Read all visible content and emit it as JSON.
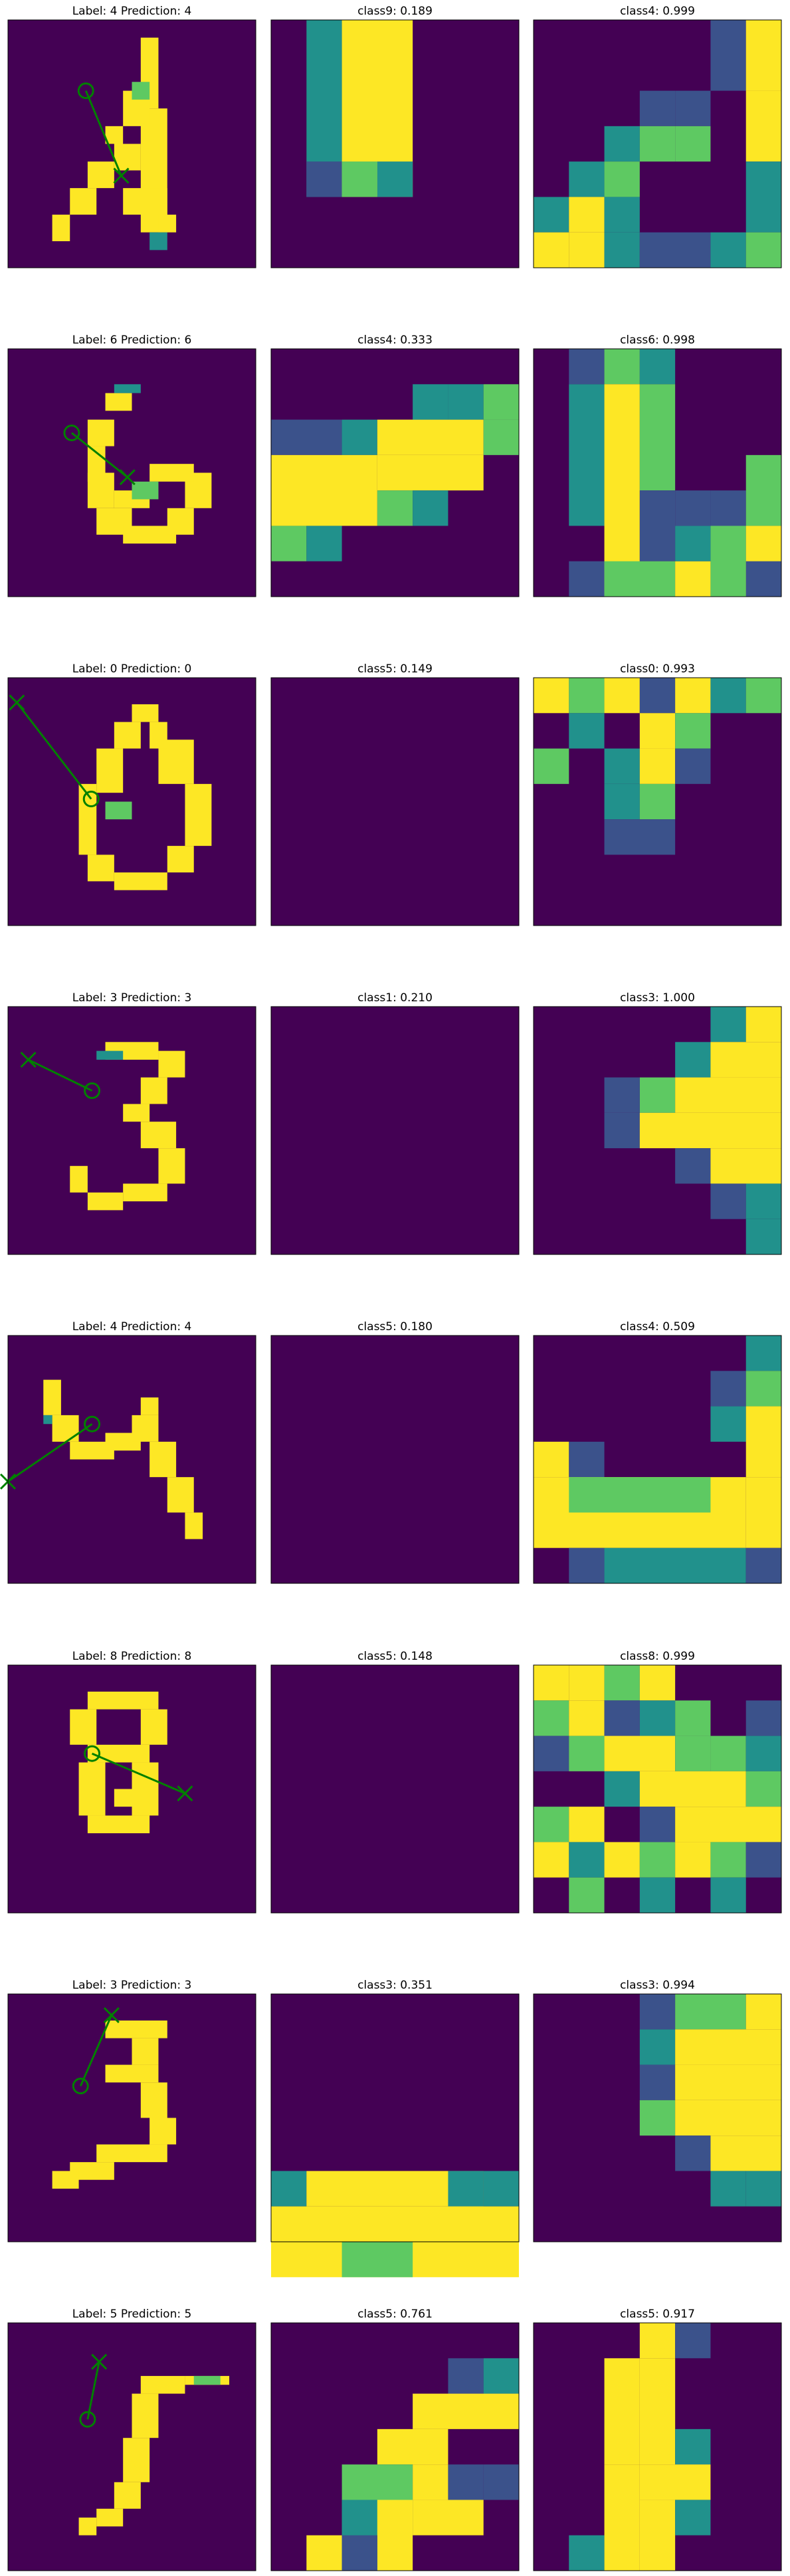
{
  "colors": {
    "background": "#440154",
    "pixel_low": "#3b528b",
    "pixel_mid": "#21918c",
    "pixel_midhigh": "#5ec962",
    "pixel_high": "#fde725",
    "arrow": "#008000",
    "frame": "#000000"
  },
  "chart_data": [
    {
      "type": "heatmap",
      "title": "Label: 4 Prediction: 4",
      "label": "4",
      "prediction": "4",
      "role": "input-digit",
      "arrow": {
        "start_marker": "circle",
        "end_marker": "x"
      }
    },
    {
      "type": "heatmap",
      "title": "class9: 0.189",
      "class": "class9",
      "score": 0.189,
      "role": "class-heatmap"
    },
    {
      "type": "heatmap",
      "title": "class4: 0.999",
      "class": "class4",
      "score": 0.999,
      "role": "class-heatmap"
    },
    {
      "type": "heatmap",
      "title": "Label: 6 Prediction: 6",
      "label": "6",
      "prediction": "6",
      "role": "input-digit",
      "arrow": {
        "start_marker": "circle",
        "end_marker": "x"
      }
    },
    {
      "type": "heatmap",
      "title": "class4: 0.333",
      "class": "class4",
      "score": 0.333,
      "role": "class-heatmap"
    },
    {
      "type": "heatmap",
      "title": "class6: 0.998",
      "class": "class6",
      "score": 0.998,
      "role": "class-heatmap"
    },
    {
      "type": "heatmap",
      "title": "Label: 0 Prediction: 0",
      "label": "0",
      "prediction": "0",
      "role": "input-digit",
      "arrow": {
        "start_marker": "circle",
        "end_marker": "x"
      }
    },
    {
      "type": "heatmap",
      "title": "class5: 0.149",
      "class": "class5",
      "score": 0.149,
      "role": "class-heatmap"
    },
    {
      "type": "heatmap",
      "title": "class0: 0.993",
      "class": "class0",
      "score": 0.993,
      "role": "class-heatmap"
    },
    {
      "type": "heatmap",
      "title": "Label: 3 Prediction: 3",
      "label": "3",
      "prediction": "3",
      "role": "input-digit",
      "arrow": {
        "start_marker": "circle",
        "end_marker": "x"
      }
    },
    {
      "type": "heatmap",
      "title": "class1: 0.210",
      "class": "class1",
      "score": 0.21,
      "role": "class-heatmap"
    },
    {
      "type": "heatmap",
      "title": "class3: 1.000",
      "class": "class3",
      "score": 1.0,
      "role": "class-heatmap"
    },
    {
      "type": "heatmap",
      "title": "Label: 4 Prediction: 4",
      "label": "4",
      "prediction": "4",
      "role": "input-digit",
      "arrow": {
        "start_marker": "circle",
        "end_marker": "x"
      }
    },
    {
      "type": "heatmap",
      "title": "class5: 0.180",
      "class": "class5",
      "score": 0.18,
      "role": "class-heatmap"
    },
    {
      "type": "heatmap",
      "title": "class4: 0.509",
      "class": "class4",
      "score": 0.509,
      "role": "class-heatmap"
    },
    {
      "type": "heatmap",
      "title": "Label: 8 Prediction: 8",
      "label": "8",
      "prediction": "8",
      "role": "input-digit",
      "arrow": {
        "start_marker": "circle",
        "end_marker": "x"
      }
    },
    {
      "type": "heatmap",
      "title": "class5: 0.148",
      "class": "class5",
      "score": 0.148,
      "role": "class-heatmap"
    },
    {
      "type": "heatmap",
      "title": "class8: 0.999",
      "class": "class8",
      "score": 0.999,
      "role": "class-heatmap"
    },
    {
      "type": "heatmap",
      "title": "Label: 3 Prediction: 3",
      "label": "3",
      "prediction": "3",
      "role": "input-digit",
      "arrow": {
        "start_marker": "circle",
        "end_marker": "x"
      }
    },
    {
      "type": "heatmap",
      "title": "class3: 0.351",
      "class": "class3",
      "score": 0.351,
      "role": "class-heatmap"
    },
    {
      "type": "heatmap",
      "title": "class3: 0.994",
      "class": "class3",
      "score": 0.994,
      "role": "class-heatmap"
    },
    {
      "type": "heatmap",
      "title": "Label: 5 Prediction: 5",
      "label": "5",
      "prediction": "5",
      "role": "input-digit",
      "arrow": {
        "start_marker": "circle",
        "end_marker": "x"
      }
    },
    {
      "type": "heatmap",
      "title": "class5: 0.761",
      "class": "class5",
      "score": 0.761,
      "role": "class-heatmap"
    },
    {
      "type": "heatmap",
      "title": "class5: 0.917",
      "class": "class5",
      "score": 0.917,
      "role": "class-heatmap"
    }
  ]
}
